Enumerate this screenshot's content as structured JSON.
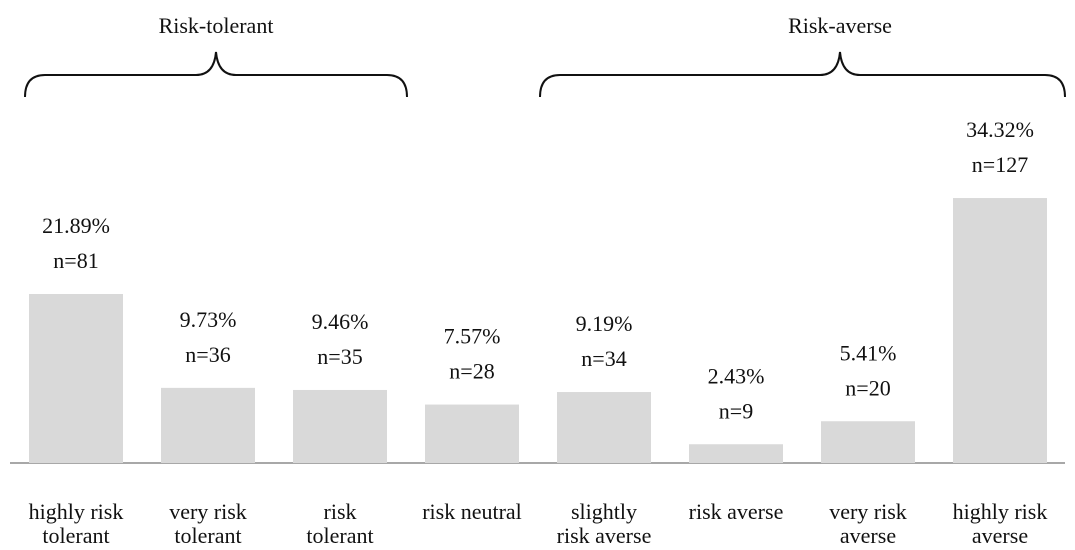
{
  "chart_data": {
    "type": "bar",
    "categories": [
      "highly risk tolerant",
      "very risk tolerant",
      "risk tolerant",
      "risk neutral",
      "slightly risk averse",
      "risk averse",
      "very risk averse",
      "highly risk averse"
    ],
    "values": [
      21.89,
      9.73,
      9.46,
      7.57,
      9.19,
      2.43,
      5.41,
      34.32
    ],
    "value_labels": [
      "21.89%",
      "9.73%",
      "9.46%",
      "7.57%",
      "9.19%",
      "2.43%",
      "5.41%",
      "34.32%"
    ],
    "counts": [
      81,
      36,
      35,
      28,
      34,
      9,
      20,
      127
    ],
    "count_labels": [
      "n=81",
      "n=36",
      "n=35",
      "n=28",
      "n=34",
      "n=9",
      "n=20",
      "n=127"
    ],
    "groups": [
      "Risk-tolerant",
      "Risk-averse"
    ],
    "color": "#d9d9d9"
  }
}
